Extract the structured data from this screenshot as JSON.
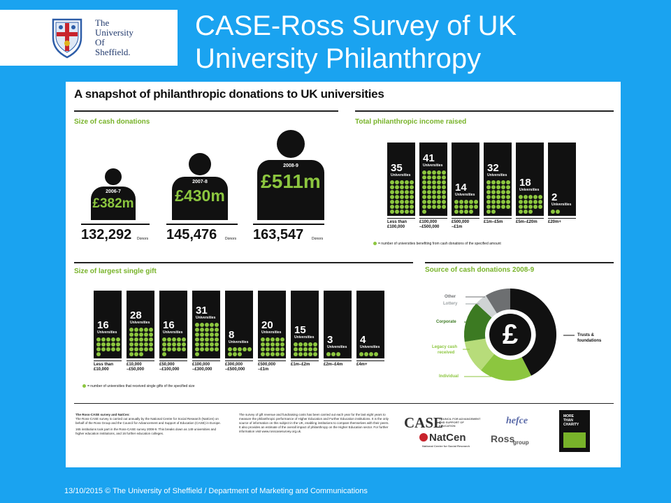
{
  "logo": {
    "line1": "The",
    "line2": "University",
    "line3": "Of",
    "line4": "Sheffield.",
    "crest_icon": "university-crest-icon"
  },
  "title": {
    "line1": "CASE-Ross Survey of UK",
    "line2": "University Philanthropy"
  },
  "infographic": {
    "title": "A snapshot of philanthropic donations to UK universities",
    "cash": {
      "heading": "Size of cash donations",
      "figures": [
        {
          "year": "2006-7",
          "amount": "£382m",
          "donors": "132,292",
          "donors_label": "Donors"
        },
        {
          "year": "2007-8",
          "amount": "£430m",
          "donors": "145,476",
          "donors_label": "Donors"
        },
        {
          "year": "2008-9",
          "amount": "£511m",
          "donors": "163,547",
          "donors_label": "Donors"
        }
      ]
    },
    "income": {
      "heading": "Total philanthropic income raised",
      "columns": [
        {
          "count": "35",
          "label": "Universities",
          "cat1": "Less than",
          "cat2": "£100,000"
        },
        {
          "count": "41",
          "label": "Universities",
          "cat1": "£100,000",
          "cat2": "–£500,000"
        },
        {
          "count": "14",
          "label": "Universities",
          "cat1": "£500,000",
          "cat2": "–£1m"
        },
        {
          "count": "32",
          "label": "Universities",
          "cat1": "£1m–£5m",
          "cat2": ""
        },
        {
          "count": "18",
          "label": "Universities",
          "cat1": "£5m–£20m",
          "cat2": ""
        },
        {
          "count": "2",
          "label": "Universities",
          "cat1": "£20m+",
          "cat2": ""
        }
      ],
      "legend": "= number of universities benefiting from cash donations of the specified amount"
    },
    "gift": {
      "heading": "Size of largest single gift",
      "columns": [
        {
          "count": "16",
          "label": "Universities",
          "cat1": "Less than",
          "cat2": "£10,000"
        },
        {
          "count": "28",
          "label": "Universities",
          "cat1": "£10,000",
          "cat2": "–£50,000"
        },
        {
          "count": "16",
          "label": "Universities",
          "cat1": "£50,000",
          "cat2": "–£100,000"
        },
        {
          "count": "31",
          "label": "Universities",
          "cat1": "£100,000",
          "cat2": "–£300,000"
        },
        {
          "count": "8",
          "label": "Universities",
          "cat1": "£300,000",
          "cat2": "–£500,000"
        },
        {
          "count": "20",
          "label": "Universities",
          "cat1": "£500,000",
          "cat2": "–£1m"
        },
        {
          "count": "15",
          "label": "Universities",
          "cat1": "£1m–£2m",
          "cat2": ""
        },
        {
          "count": "3",
          "label": "Universities",
          "cat1": "£2m–£4m",
          "cat2": ""
        },
        {
          "count": "4",
          "label": "Universities",
          "cat1": "£4m+",
          "cat2": ""
        }
      ],
      "legend": "= number of universities that received single gifts of the specified size"
    },
    "source": {
      "heading": "Source of cash donations 2008-9",
      "center_symbol": "£",
      "labels": {
        "other": "Other",
        "lottery": "Lottery",
        "corporate": "Corporate",
        "legacy1": "Legacy cash",
        "legacy2": "received",
        "individual": "Individual",
        "trusts1": "Trusts &",
        "trusts2": "foundations"
      },
      "colors": {
        "trusts": "#111111",
        "individual": "#8cc63f",
        "legacy": "#b7dc7a",
        "corporate": "#3c7a22",
        "lottery": "#cfd3d4",
        "other": "#6d6f71"
      }
    },
    "footer": {
      "col1_title": "The Ross-CASE survey and NatCen:",
      "col1_body": "The Ross-CASE survey is carried out annually by the National Centre for Social Research (NatCen) on behalf of the Ross Group and the Council for Advancement and Support of Education (CASE) in Europe.",
      "col1_body2": "165 institutions took part in the Ross-CASE survey 2008-9. This breaks down as 149 universities and higher education institutions, and 16 further education colleges.",
      "col2_body": "The survey of gift revenue and fundraising costs has been carried out each year for the last eight years to measure the philanthropic performance of Higher Education and Further Education institutions. It is the only source of information on this subject in the UK, enabling institutions to compare themselves with their peers. It also provides an estimate of the overall impact of philanthropy on the Higher Education sector. For further information visit www.rosscasesurvey.org.uk.",
      "partners": {
        "case": "CASE",
        "case_sub": "COUNCIL FOR ADVANCEMENT AND SUPPORT OF EDUCATION",
        "natcen": "NatCen",
        "natcen_sub": "National Centre for Social Research",
        "hefce": "hefce",
        "ross": "Ross",
        "ross_sub": "group",
        "badge1": "MORE",
        "badge2": "THAN",
        "badge3": "CHARITY"
      }
    }
  },
  "status_bar": "13/10/2015  © The University of Sheffield / Department of Marketing and Communications"
}
